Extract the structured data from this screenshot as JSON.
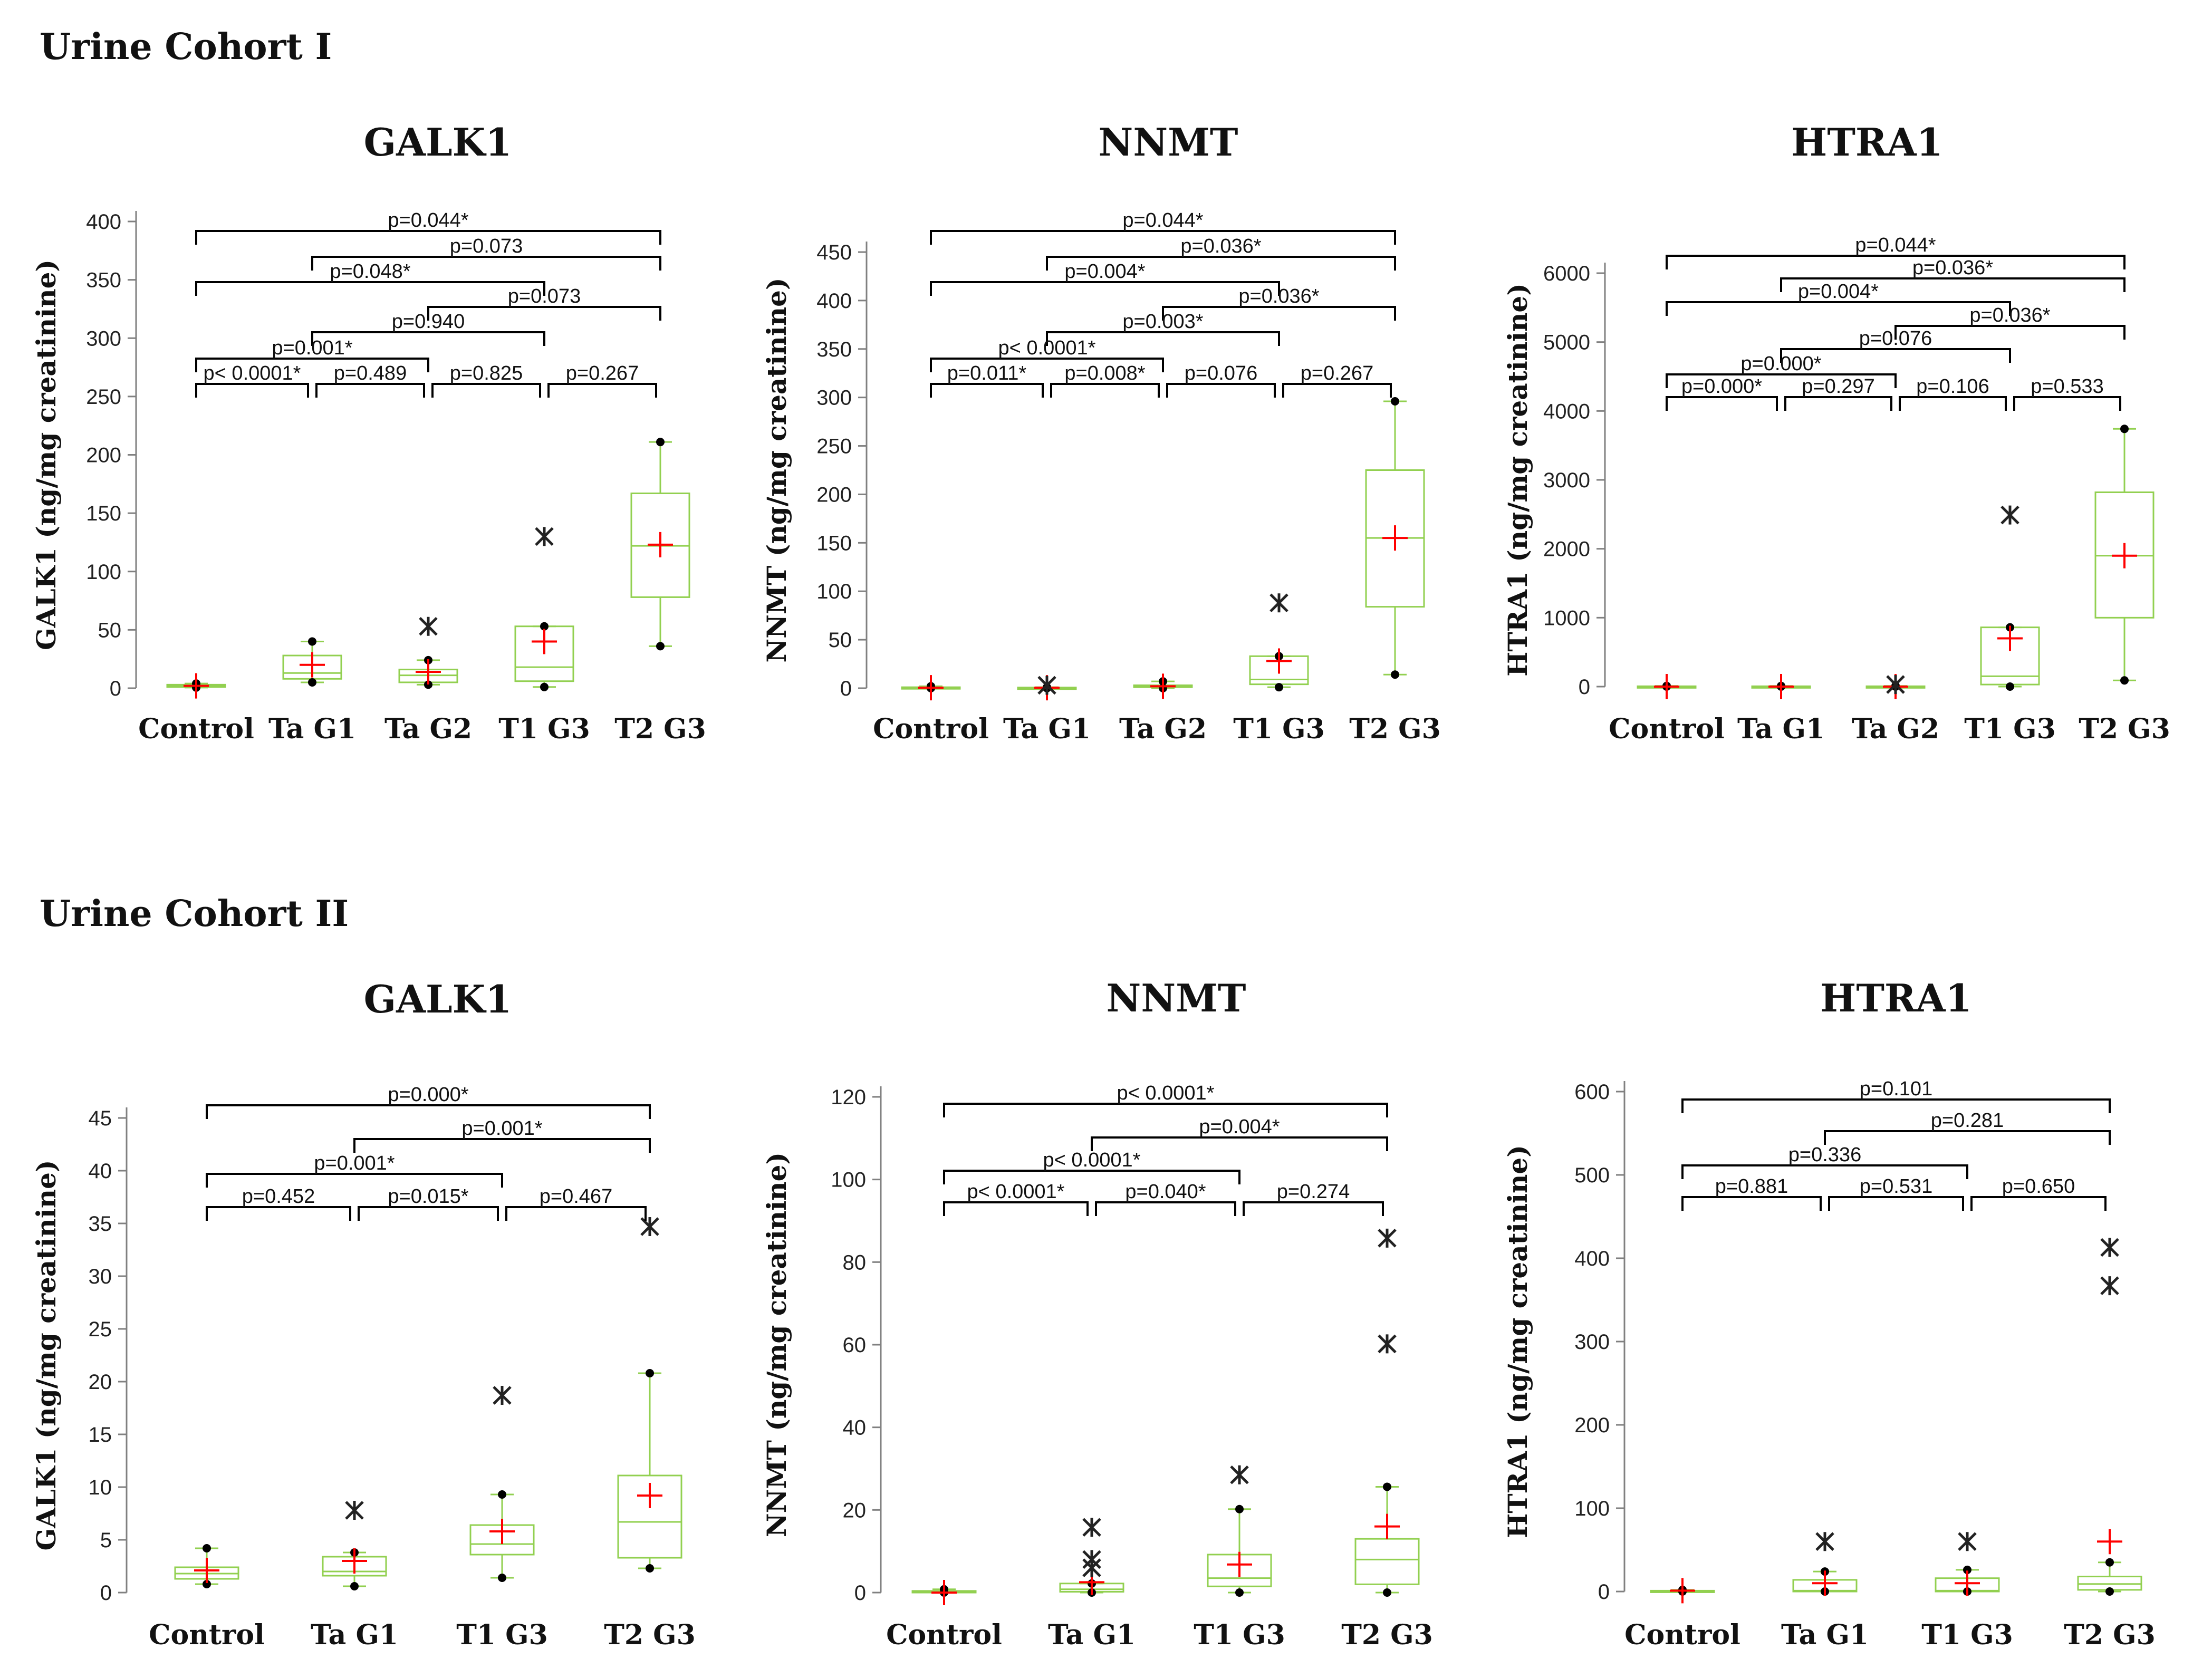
{
  "sections": [
    {
      "title": "Urine Cohort I"
    },
    {
      "title": "Urine Cohort II"
    }
  ],
  "colors": {
    "box": "#92d050",
    "mean": "#ff0000",
    "point": "#000000",
    "bracket": "#000000"
  },
  "chart_data": [
    {
      "type": "boxplot",
      "cohort": "Urine Cohort I",
      "title": "GALK1",
      "ylabel": "GALK1 (ng/mg creatinine)",
      "ylim": [
        0,
        400
      ],
      "yticks": [
        0,
        50,
        100,
        150,
        200,
        250,
        300,
        350,
        400
      ],
      "categories": [
        "Control",
        "Ta G1",
        "Ta G2",
        "T1 G3",
        "T2 G3"
      ],
      "boxes": [
        {
          "min": 0.5,
          "q1": 1,
          "median": 2,
          "q3": 3,
          "max": 4,
          "mean": 2,
          "fliers": []
        },
        {
          "min": 5,
          "q1": 8,
          "median": 13,
          "q3": 28,
          "max": 40,
          "mean": 20,
          "fliers": []
        },
        {
          "min": 3,
          "q1": 5,
          "median": 11,
          "q3": 16,
          "max": 24,
          "mean": 14,
          "fliers": [
            53
          ]
        },
        {
          "min": 1,
          "q1": 6,
          "median": 18,
          "q3": 53,
          "max": 53,
          "mean": 40,
          "fliers": [
            130
          ]
        },
        {
          "min": 36,
          "q1": 78,
          "median": 122,
          "q3": 167,
          "max": 211,
          "mean": 123,
          "fliers": []
        }
      ],
      "comparisons": [
        {
          "from": 0,
          "to": 4,
          "label": "p=0.044*"
        },
        {
          "from": 1,
          "to": 4,
          "label": "p=0.073"
        },
        {
          "from": 0,
          "to": 3,
          "label": "p=0.048*"
        },
        {
          "from": 2,
          "to": 4,
          "label": "p=0.073"
        },
        {
          "from": 1,
          "to": 3,
          "label": "p=0.940"
        },
        {
          "from": 0,
          "to": 2,
          "label": "p=0.001*"
        },
        {
          "from": 0,
          "to": 1,
          "label": "p< 0.0001*"
        },
        {
          "from": 1,
          "to": 2,
          "label": "p=0.489"
        },
        {
          "from": 2,
          "to": 3,
          "label": "p=0.825"
        },
        {
          "from": 3,
          "to": 4,
          "label": "p=0.267"
        }
      ]
    },
    {
      "type": "boxplot",
      "cohort": "Urine Cohort I",
      "title": "NNMT",
      "ylabel": "NNMT  (ng/mg creatinine)",
      "ylim": [
        0,
        450
      ],
      "yticks": [
        0,
        50,
        100,
        150,
        200,
        250,
        300,
        350,
        400,
        450
      ],
      "categories": [
        "Control",
        "Ta G1",
        "Ta G2",
        "T1 G3",
        "T2 G3"
      ],
      "boxes": [
        {
          "min": 0,
          "q1": 0,
          "median": 0.5,
          "q3": 1,
          "max": 2,
          "mean": 0.5,
          "fliers": []
        },
        {
          "min": 0,
          "q1": 0,
          "median": 0.3,
          "q3": 0.7,
          "max": 1,
          "mean": 0.5,
          "fliers": [
            3
          ]
        },
        {
          "min": 0,
          "q1": 1,
          "median": 2,
          "q3": 3,
          "max": 7,
          "mean": 2,
          "fliers": []
        },
        {
          "min": 1,
          "q1": 4,
          "median": 9,
          "q3": 33,
          "max": 33,
          "mean": 28,
          "fliers": [
            88
          ]
        },
        {
          "min": 14,
          "q1": 84,
          "median": 155,
          "q3": 225,
          "max": 296,
          "mean": 155,
          "fliers": []
        }
      ],
      "comparisons": [
        {
          "from": 0,
          "to": 4,
          "label": "p=0.044*"
        },
        {
          "from": 1,
          "to": 4,
          "label": "p=0.036*"
        },
        {
          "from": 0,
          "to": 3,
          "label": "p=0.004*"
        },
        {
          "from": 2,
          "to": 4,
          "label": "p=0.036*"
        },
        {
          "from": 1,
          "to": 3,
          "label": "p=0.003*"
        },
        {
          "from": 0,
          "to": 2,
          "label": "p< 0.0001*"
        },
        {
          "from": 0,
          "to": 1,
          "label": "p=0.011*"
        },
        {
          "from": 1,
          "to": 2,
          "label": "p=0.008*"
        },
        {
          "from": 2,
          "to": 3,
          "label": "p=0.076"
        },
        {
          "from": 3,
          "to": 4,
          "label": "p=0.267"
        }
      ]
    },
    {
      "type": "boxplot",
      "cohort": "Urine Cohort I",
      "title": "HTRA1",
      "ylabel": "HTRA1 (ng/mg creatinine)",
      "ylim": [
        0,
        6000
      ],
      "yticks": [
        0,
        1000,
        2000,
        3000,
        4000,
        5000,
        6000
      ],
      "categories": [
        "Control",
        "Ta G1",
        "Ta G2",
        "T1 G3",
        "T2 G3"
      ],
      "boxes": [
        {
          "min": 0,
          "q1": 0,
          "median": 0,
          "q3": 5,
          "max": 10,
          "mean": 0,
          "fliers": []
        },
        {
          "min": 0,
          "q1": 0,
          "median": 0,
          "q3": 5,
          "max": 10,
          "mean": 0,
          "fliers": []
        },
        {
          "min": 0,
          "q1": 0,
          "median": 0,
          "q3": 5,
          "max": 10,
          "mean": 0,
          "fliers": [
            30
          ]
        },
        {
          "min": 0,
          "q1": 30,
          "median": 150,
          "q3": 860,
          "max": 860,
          "mean": 700,
          "fliers": [
            2490
          ]
        },
        {
          "min": 90,
          "q1": 1000,
          "median": 1900,
          "q3": 2820,
          "max": 3740,
          "mean": 1900,
          "fliers": []
        }
      ],
      "comparisons": [
        {
          "from": 0,
          "to": 4,
          "label": "p=0.044*"
        },
        {
          "from": 1,
          "to": 4,
          "label": "p=0.036*"
        },
        {
          "from": 0,
          "to": 3,
          "label": "p=0.004*"
        },
        {
          "from": 2,
          "to": 4,
          "label": "p=0.036*"
        },
        {
          "from": 1,
          "to": 3,
          "label": "p=0.076"
        },
        {
          "from": 0,
          "to": 2,
          "label": "p=0.000*"
        },
        {
          "from": 0,
          "to": 1,
          "label": "p=0.000*"
        },
        {
          "from": 1,
          "to": 2,
          "label": "p=0.297"
        },
        {
          "from": 2,
          "to": 3,
          "label": "p=0.106"
        },
        {
          "from": 3,
          "to": 4,
          "label": "p=0.533"
        }
      ]
    },
    {
      "type": "boxplot",
      "cohort": "Urine Cohort II",
      "title": "GALK1",
      "ylabel": "GALK1 (ng/mg creatinine)",
      "ylim": [
        0,
        45
      ],
      "yticks": [
        0,
        5,
        10,
        15,
        20,
        25,
        30,
        35,
        40,
        45
      ],
      "categories": [
        "Control",
        "Ta G1",
        "T1 G3",
        "T2 G3"
      ],
      "boxes": [
        {
          "min": 0.8,
          "q1": 1.3,
          "median": 1.8,
          "q3": 2.4,
          "max": 4.2,
          "mean": 2.1,
          "fliers": []
        },
        {
          "min": 0.6,
          "q1": 1.6,
          "median": 2.0,
          "q3": 3.4,
          "max": 3.8,
          "mean": 3.0,
          "fliers": [
            7.8
          ]
        },
        {
          "min": 1.4,
          "q1": 3.6,
          "median": 4.6,
          "q3": 6.4,
          "max": 9.3,
          "mean": 5.8,
          "fliers": [
            18.7
          ]
        },
        {
          "min": 2.3,
          "q1": 3.3,
          "median": 6.7,
          "q3": 11.1,
          "max": 20.8,
          "mean": 9.2,
          "fliers": [
            34.7
          ]
        }
      ],
      "comparisons": [
        {
          "from": 0,
          "to": 3,
          "label": "p=0.000*"
        },
        {
          "from": 1,
          "to": 3,
          "label": "p=0.001*"
        },
        {
          "from": 0,
          "to": 2,
          "label": "p=0.001*"
        },
        {
          "from": 0,
          "to": 1,
          "label": "p=0.452"
        },
        {
          "from": 1,
          "to": 2,
          "label": "p=0.015*"
        },
        {
          "from": 2,
          "to": 3,
          "label": "p=0.467"
        }
      ]
    },
    {
      "type": "boxplot",
      "cohort": "Urine Cohort II",
      "title": "NNMT",
      "ylabel": "NNMT  (ng/mg creatinine)",
      "ylim": [
        0,
        120
      ],
      "yticks": [
        0,
        20,
        40,
        60,
        80,
        100,
        120
      ],
      "categories": [
        "Control",
        "Ta G1",
        "T1 G3",
        "T2 G3"
      ],
      "boxes": [
        {
          "min": 0,
          "q1": 0,
          "median": 0.2,
          "q3": 0.4,
          "max": 0.8,
          "mean": 0,
          "fliers": []
        },
        {
          "min": 0,
          "q1": 0.2,
          "median": 0.8,
          "q3": 2.2,
          "max": 2.2,
          "mean": 2.5,
          "fliers": [
            15.8,
            8,
            6
          ]
        },
        {
          "min": 0,
          "q1": 1.5,
          "median": 3.5,
          "q3": 9.2,
          "max": 20.2,
          "mean": 6.8,
          "fliers": [
            28.5
          ]
        },
        {
          "min": 0,
          "q1": 2,
          "median": 8,
          "q3": 13,
          "max": 25.6,
          "mean": 16,
          "fliers": [
            85.8,
            60.2
          ]
        }
      ],
      "comparisons": [
        {
          "from": 0,
          "to": 3,
          "label": "p< 0.0001*"
        },
        {
          "from": 1,
          "to": 3,
          "label": "p=0.004*"
        },
        {
          "from": 0,
          "to": 2,
          "label": "p< 0.0001*"
        },
        {
          "from": 0,
          "to": 1,
          "label": "p< 0.0001*"
        },
        {
          "from": 1,
          "to": 2,
          "label": "p=0.040*"
        },
        {
          "from": 2,
          "to": 3,
          "label": "p=0.274"
        }
      ]
    },
    {
      "type": "boxplot",
      "cohort": "Urine Cohort II",
      "title": "HTRA1",
      "ylabel": "HTRA1 (ng/mg creatinine)",
      "ylim": [
        0,
        600
      ],
      "yticks": [
        0,
        100,
        200,
        300,
        400,
        500,
        600
      ],
      "categories": [
        "Control",
        "Ta G1",
        "T1 G3",
        "T2 G3"
      ],
      "boxes": [
        {
          "min": 0,
          "q1": 0,
          "median": 0,
          "q3": 1,
          "max": 2,
          "mean": 1,
          "fliers": []
        },
        {
          "min": 0,
          "q1": 0,
          "median": 1,
          "q3": 14,
          "max": 24,
          "mean": 10,
          "fliers": [
            60
          ]
        },
        {
          "min": 0,
          "q1": 0,
          "median": 1,
          "q3": 16,
          "max": 26,
          "mean": 10,
          "fliers": [
            60
          ]
        },
        {
          "min": 0,
          "q1": 2,
          "median": 9,
          "q3": 18,
          "max": 35,
          "mean": 60,
          "fliers": [
            413,
            367
          ]
        }
      ],
      "comparisons": [
        {
          "from": 0,
          "to": 3,
          "label": "p=0.101"
        },
        {
          "from": 1,
          "to": 3,
          "label": "p=0.281"
        },
        {
          "from": 0,
          "to": 2,
          "label": "p=0.336"
        },
        {
          "from": 0,
          "to": 1,
          "label": "p=0.881"
        },
        {
          "from": 1,
          "to": 2,
          "label": "p=0.531"
        },
        {
          "from": 2,
          "to": 3,
          "label": "p=0.650"
        }
      ]
    }
  ]
}
